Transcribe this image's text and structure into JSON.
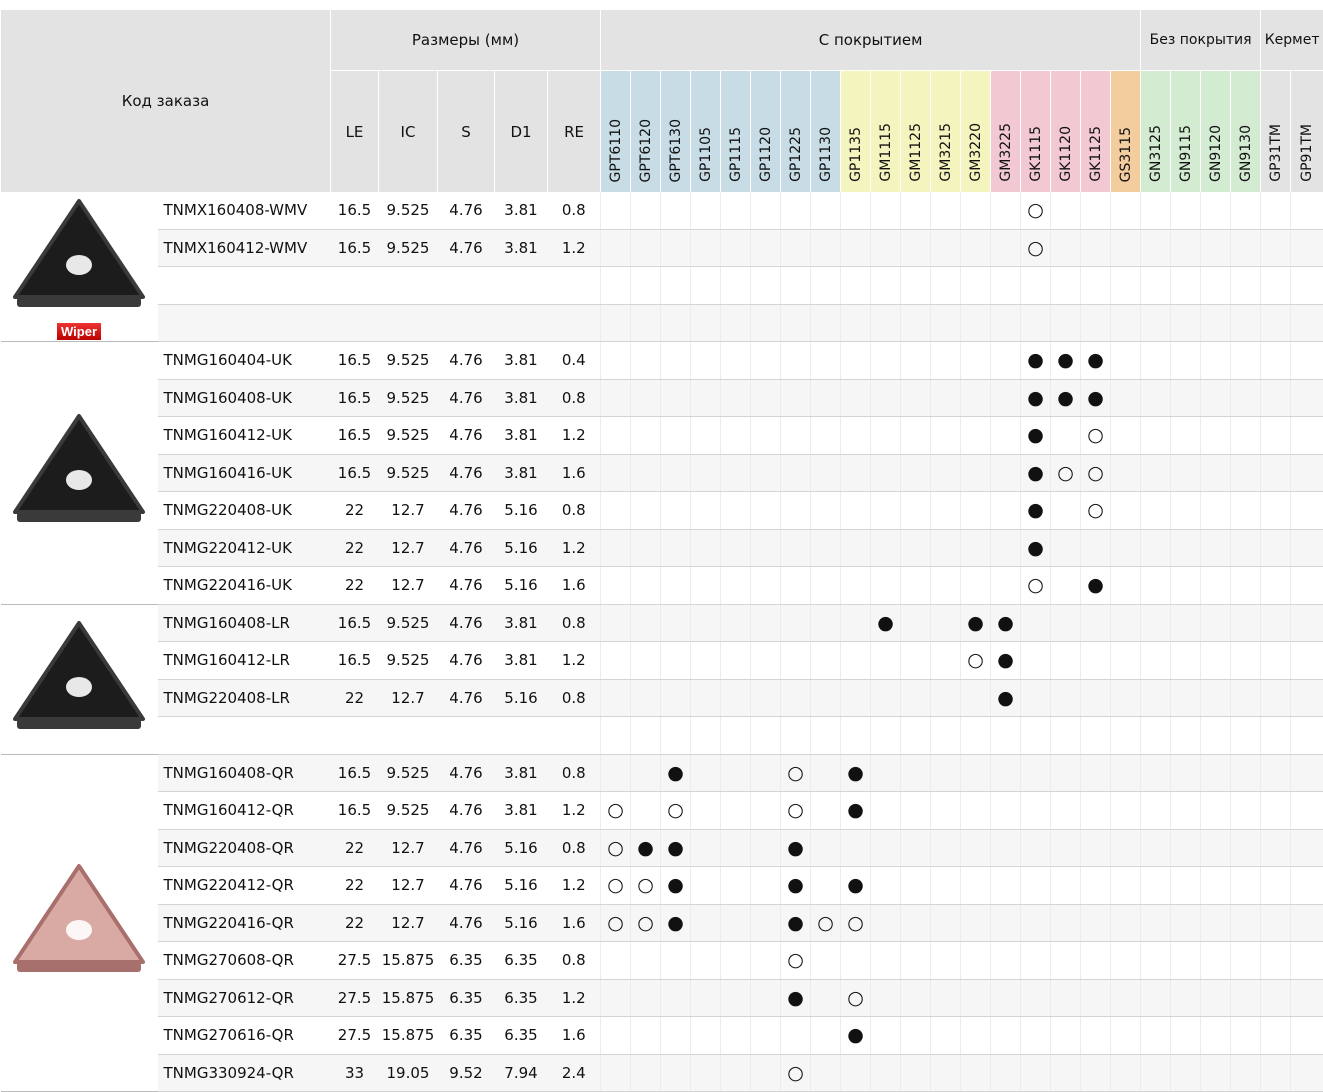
{
  "header": {
    "order_code": "Код заказа",
    "dimensions": "Размеры (мм)",
    "coated": "С покрытием",
    "uncoated": "Без покрытия",
    "cermet": "Кермет",
    "dim_cols": [
      "LE",
      "IC",
      "S",
      "D1",
      "RE"
    ],
    "grades": [
      "GPT6110",
      "GPT6120",
      "GPT6130",
      "GP1105",
      "GP1115",
      "GP1120",
      "GP1225",
      "GP1130",
      "GP1135",
      "GM1115",
      "GM1125",
      "GM3215",
      "GM3220",
      "GM3225",
      "GK1115",
      "GK1120",
      "GK1125",
      "GS3115",
      "GN3125",
      "GN9115",
      "GN9120",
      "GN9130",
      "GP31TM",
      "GP91TM"
    ]
  },
  "groups": [
    {
      "badge": "Wiper",
      "rows": [
        {
          "code": "TNMX160408-WMV",
          "dims": [
            16.5,
            9.525,
            4.76,
            3.81,
            0.8
          ],
          "grades": [
            null,
            null,
            null,
            null,
            null,
            null,
            null,
            null,
            null,
            null,
            null,
            null,
            null,
            null,
            "○",
            null,
            null,
            null,
            null,
            null,
            null,
            null,
            null,
            null
          ]
        },
        {
          "code": "TNMX160412-WMV",
          "dims": [
            16.5,
            9.525,
            4.76,
            3.81,
            1.2
          ],
          "grades": [
            null,
            null,
            null,
            null,
            null,
            null,
            null,
            null,
            null,
            null,
            null,
            null,
            null,
            null,
            "○",
            null,
            null,
            null,
            null,
            null,
            null,
            null,
            null,
            null
          ]
        }
      ]
    },
    {
      "rows": [
        {
          "code": "TNMG160404-UK",
          "dims": [
            16.5,
            9.525,
            4.76,
            3.81,
            0.4
          ],
          "grades": [
            null,
            null,
            null,
            null,
            null,
            null,
            null,
            null,
            null,
            null,
            null,
            null,
            null,
            null,
            "●",
            "●",
            "●",
            null,
            null,
            null,
            null,
            null,
            null,
            null
          ]
        },
        {
          "code": "TNMG160408-UK",
          "dims": [
            16.5,
            9.525,
            4.76,
            3.81,
            0.8
          ],
          "grades": [
            null,
            null,
            null,
            null,
            null,
            null,
            null,
            null,
            null,
            null,
            null,
            null,
            null,
            null,
            "●",
            "●",
            "●",
            null,
            null,
            null,
            null,
            null,
            null,
            null
          ]
        },
        {
          "code": "TNMG160412-UK",
          "dims": [
            16.5,
            9.525,
            4.76,
            3.81,
            1.2
          ],
          "grades": [
            null,
            null,
            null,
            null,
            null,
            null,
            null,
            null,
            null,
            null,
            null,
            null,
            null,
            null,
            "●",
            null,
            "○",
            null,
            null,
            null,
            null,
            null,
            null,
            null
          ]
        },
        {
          "code": "TNMG160416-UK",
          "dims": [
            16.5,
            9.525,
            4.76,
            3.81,
            1.6
          ],
          "grades": [
            null,
            null,
            null,
            null,
            null,
            null,
            null,
            null,
            null,
            null,
            null,
            null,
            null,
            null,
            "●",
            "○",
            "○",
            null,
            null,
            null,
            null,
            null,
            null,
            null
          ]
        },
        {
          "code": "TNMG220408-UK",
          "dims": [
            22,
            12.7,
            4.76,
            5.16,
            0.8
          ],
          "grades": [
            null,
            null,
            null,
            null,
            null,
            null,
            null,
            null,
            null,
            null,
            null,
            null,
            null,
            null,
            "●",
            null,
            "○",
            null,
            null,
            null,
            null,
            null,
            null,
            null
          ]
        },
        {
          "code": "TNMG220412-UK",
          "dims": [
            22,
            12.7,
            4.76,
            5.16,
            1.2
          ],
          "grades": [
            null,
            null,
            null,
            null,
            null,
            null,
            null,
            null,
            null,
            null,
            null,
            null,
            null,
            null,
            "●",
            null,
            null,
            null,
            null,
            null,
            null,
            null,
            null,
            null
          ]
        },
        {
          "code": "TNMG220416-UK",
          "dims": [
            22,
            12.7,
            4.76,
            5.16,
            1.6
          ],
          "grades": [
            null,
            null,
            null,
            null,
            null,
            null,
            null,
            null,
            null,
            null,
            null,
            null,
            null,
            null,
            "○",
            null,
            "●",
            null,
            null,
            null,
            null,
            null,
            null,
            null
          ]
        }
      ]
    },
    {
      "rows": [
        {
          "code": "TNMG160408-LR",
          "dims": [
            16.5,
            9.525,
            4.76,
            3.81,
            0.8
          ],
          "grades": [
            null,
            null,
            null,
            null,
            null,
            null,
            null,
            null,
            null,
            "●",
            null,
            null,
            "●",
            "●",
            null,
            null,
            null,
            null,
            null,
            null,
            null,
            null,
            null,
            null
          ]
        },
        {
          "code": "TNMG160412-LR",
          "dims": [
            16.5,
            9.525,
            4.76,
            3.81,
            1.2
          ],
          "grades": [
            null,
            null,
            null,
            null,
            null,
            null,
            null,
            null,
            null,
            null,
            null,
            null,
            "○",
            "●",
            null,
            null,
            null,
            null,
            null,
            null,
            null,
            null,
            null,
            null
          ]
        },
        {
          "code": "TNMG220408-LR",
          "dims": [
            22,
            12.7,
            4.76,
            5.16,
            0.8
          ],
          "grades": [
            null,
            null,
            null,
            null,
            null,
            null,
            null,
            null,
            null,
            null,
            null,
            null,
            null,
            "●",
            null,
            null,
            null,
            null,
            null,
            null,
            null,
            null,
            null,
            null
          ]
        }
      ]
    },
    {
      "rows": [
        {
          "code": "TNMG160408-QR",
          "dims": [
            16.5,
            9.525,
            4.76,
            3.81,
            0.8
          ],
          "grades": [
            null,
            null,
            "●",
            null,
            null,
            null,
            "○",
            null,
            "●",
            null,
            null,
            null,
            null,
            null,
            null,
            null,
            null,
            null,
            null,
            null,
            null,
            null,
            null,
            null
          ]
        },
        {
          "code": "TNMG160412-QR",
          "dims": [
            16.5,
            9.525,
            4.76,
            3.81,
            1.2
          ],
          "grades": [
            "○",
            null,
            "○",
            null,
            null,
            null,
            "○",
            null,
            "●",
            null,
            null,
            null,
            null,
            null,
            null,
            null,
            null,
            null,
            null,
            null,
            null,
            null,
            null,
            null
          ]
        },
        {
          "code": "TNMG220408-QR",
          "dims": [
            22,
            12.7,
            4.76,
            5.16,
            0.8
          ],
          "grades": [
            "○",
            "●",
            "●",
            null,
            null,
            null,
            "●",
            null,
            null,
            null,
            null,
            null,
            null,
            null,
            null,
            null,
            null,
            null,
            null,
            null,
            null,
            null,
            null,
            null
          ]
        },
        {
          "code": "TNMG220412-QR",
          "dims": [
            22,
            12.7,
            4.76,
            5.16,
            1.2
          ],
          "grades": [
            "○",
            "○",
            "●",
            null,
            null,
            null,
            "●",
            null,
            "●",
            null,
            null,
            null,
            null,
            null,
            null,
            null,
            null,
            null,
            null,
            null,
            null,
            null,
            null,
            null
          ]
        },
        {
          "code": "TNMG220416-QR",
          "dims": [
            22,
            12.7,
            4.76,
            5.16,
            1.6
          ],
          "grades": [
            "○",
            "○",
            "●",
            null,
            null,
            null,
            "●",
            "○",
            "○",
            null,
            null,
            null,
            null,
            null,
            null,
            null,
            null,
            null,
            null,
            null,
            null,
            null,
            null,
            null
          ]
        },
        {
          "code": "TNMG270608-QR",
          "dims": [
            27.5,
            15.875,
            6.35,
            6.35,
            0.8
          ],
          "grades": [
            null,
            null,
            null,
            null,
            null,
            null,
            "○",
            null,
            null,
            null,
            null,
            null,
            null,
            null,
            null,
            null,
            null,
            null,
            null,
            null,
            null,
            null,
            null,
            null
          ]
        },
        {
          "code": "TNMG270612-QR",
          "dims": [
            27.5,
            15.875,
            6.35,
            6.35,
            1.2
          ],
          "grades": [
            null,
            null,
            null,
            null,
            null,
            null,
            "●",
            null,
            "○",
            null,
            null,
            null,
            null,
            null,
            null,
            null,
            null,
            null,
            null,
            null,
            null,
            null,
            null,
            null
          ]
        },
        {
          "code": "TNMG270616-QR",
          "dims": [
            27.5,
            15.875,
            6.35,
            6.35,
            1.6
          ],
          "grades": [
            null,
            null,
            null,
            null,
            null,
            null,
            null,
            null,
            "●",
            null,
            null,
            null,
            null,
            null,
            null,
            null,
            null,
            null,
            null,
            null,
            null,
            null,
            null,
            null
          ]
        },
        {
          "code": "TNMG330924-QR",
          "dims": [
            33,
            19.05,
            9.52,
            7.94,
            2.4
          ],
          "grades": [
            null,
            null,
            null,
            null,
            null,
            null,
            "○",
            null,
            null,
            null,
            null,
            null,
            null,
            null,
            null,
            null,
            null,
            null,
            null,
            null,
            null,
            null,
            null,
            null
          ]
        }
      ]
    }
  ]
}
